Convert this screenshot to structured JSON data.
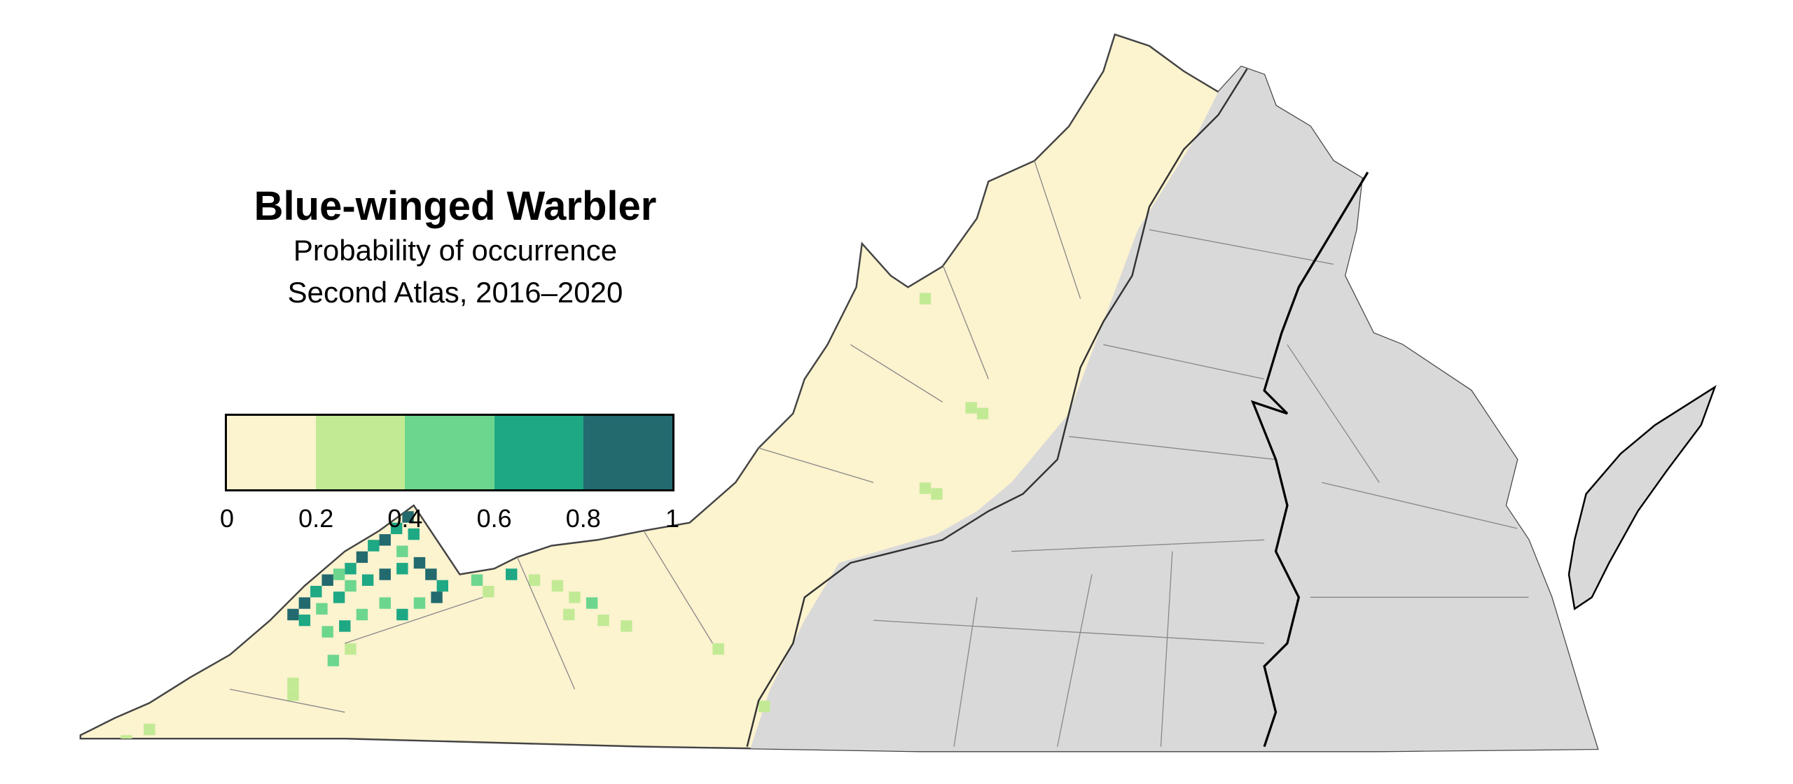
{
  "legend": {
    "title": "Blue-winged Warbler",
    "subtitle": "Probability of occurrence",
    "period": "Second Atlas, 2016–2020",
    "bins": [
      {
        "range": [
          0,
          0.2
        ],
        "color": "#fcf3cf"
      },
      {
        "range": [
          0.2,
          0.4
        ],
        "color": "#c2ea95"
      },
      {
        "range": [
          0.4,
          0.6
        ],
        "color": "#6cd68e"
      },
      {
        "range": [
          0.6,
          0.8
        ],
        "color": "#1ea884"
      },
      {
        "range": [
          0.8,
          1
        ],
        "color": "#226a6e"
      }
    ],
    "tick_labels": [
      "0",
      "0.2",
      "0.4",
      "0.6",
      "0.8",
      "1"
    ]
  },
  "map": {
    "surveyed_region_color": "#fcf3cf",
    "unmodeled_region_color": "#d9d9d9",
    "county_line_color": "#777777",
    "boundary_color": "#000000"
  }
}
